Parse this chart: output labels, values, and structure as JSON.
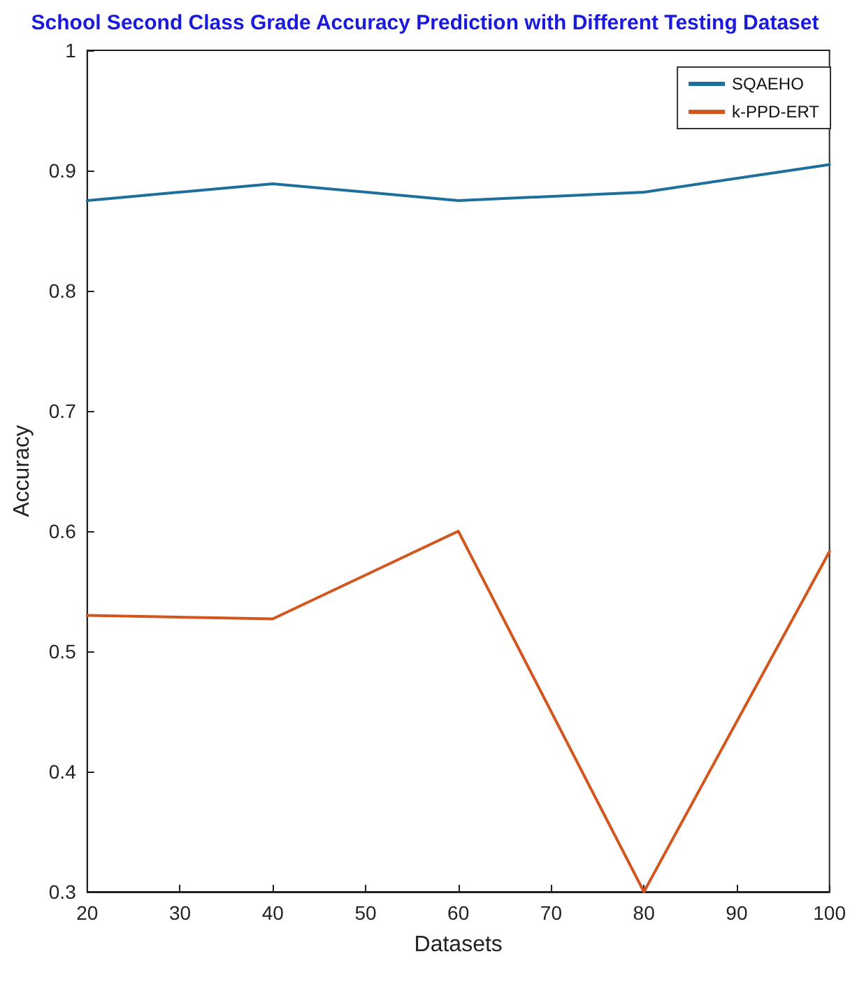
{
  "chart_data": {
    "type": "line",
    "title": "School Second Class Grade Accuracy Prediction with Different Testing Dataset",
    "xlabel": "Datasets",
    "ylabel": "Accuracy",
    "x": [
      20,
      40,
      60,
      80,
      100
    ],
    "series": [
      {
        "name": "SQAEHO",
        "color": "#1f6f9c",
        "values": [
          0.875,
          0.889,
          0.875,
          0.882,
          0.905
        ]
      },
      {
        "name": "k-PPD-ERT",
        "color": "#d2561e",
        "values": [
          0.53,
          0.527,
          0.6,
          0.3,
          0.583
        ]
      }
    ],
    "xlim": [
      20,
      100
    ],
    "xticks": [
      20,
      30,
      40,
      50,
      60,
      70,
      80,
      90,
      100
    ],
    "ylim": [
      0.3,
      1
    ],
    "yticks": [
      0.3,
      0.4,
      0.5,
      0.6,
      0.7,
      0.8,
      0.9,
      1
    ],
    "grid": false,
    "legend": "top right",
    "marker": "none",
    "line_style": "solid"
  }
}
